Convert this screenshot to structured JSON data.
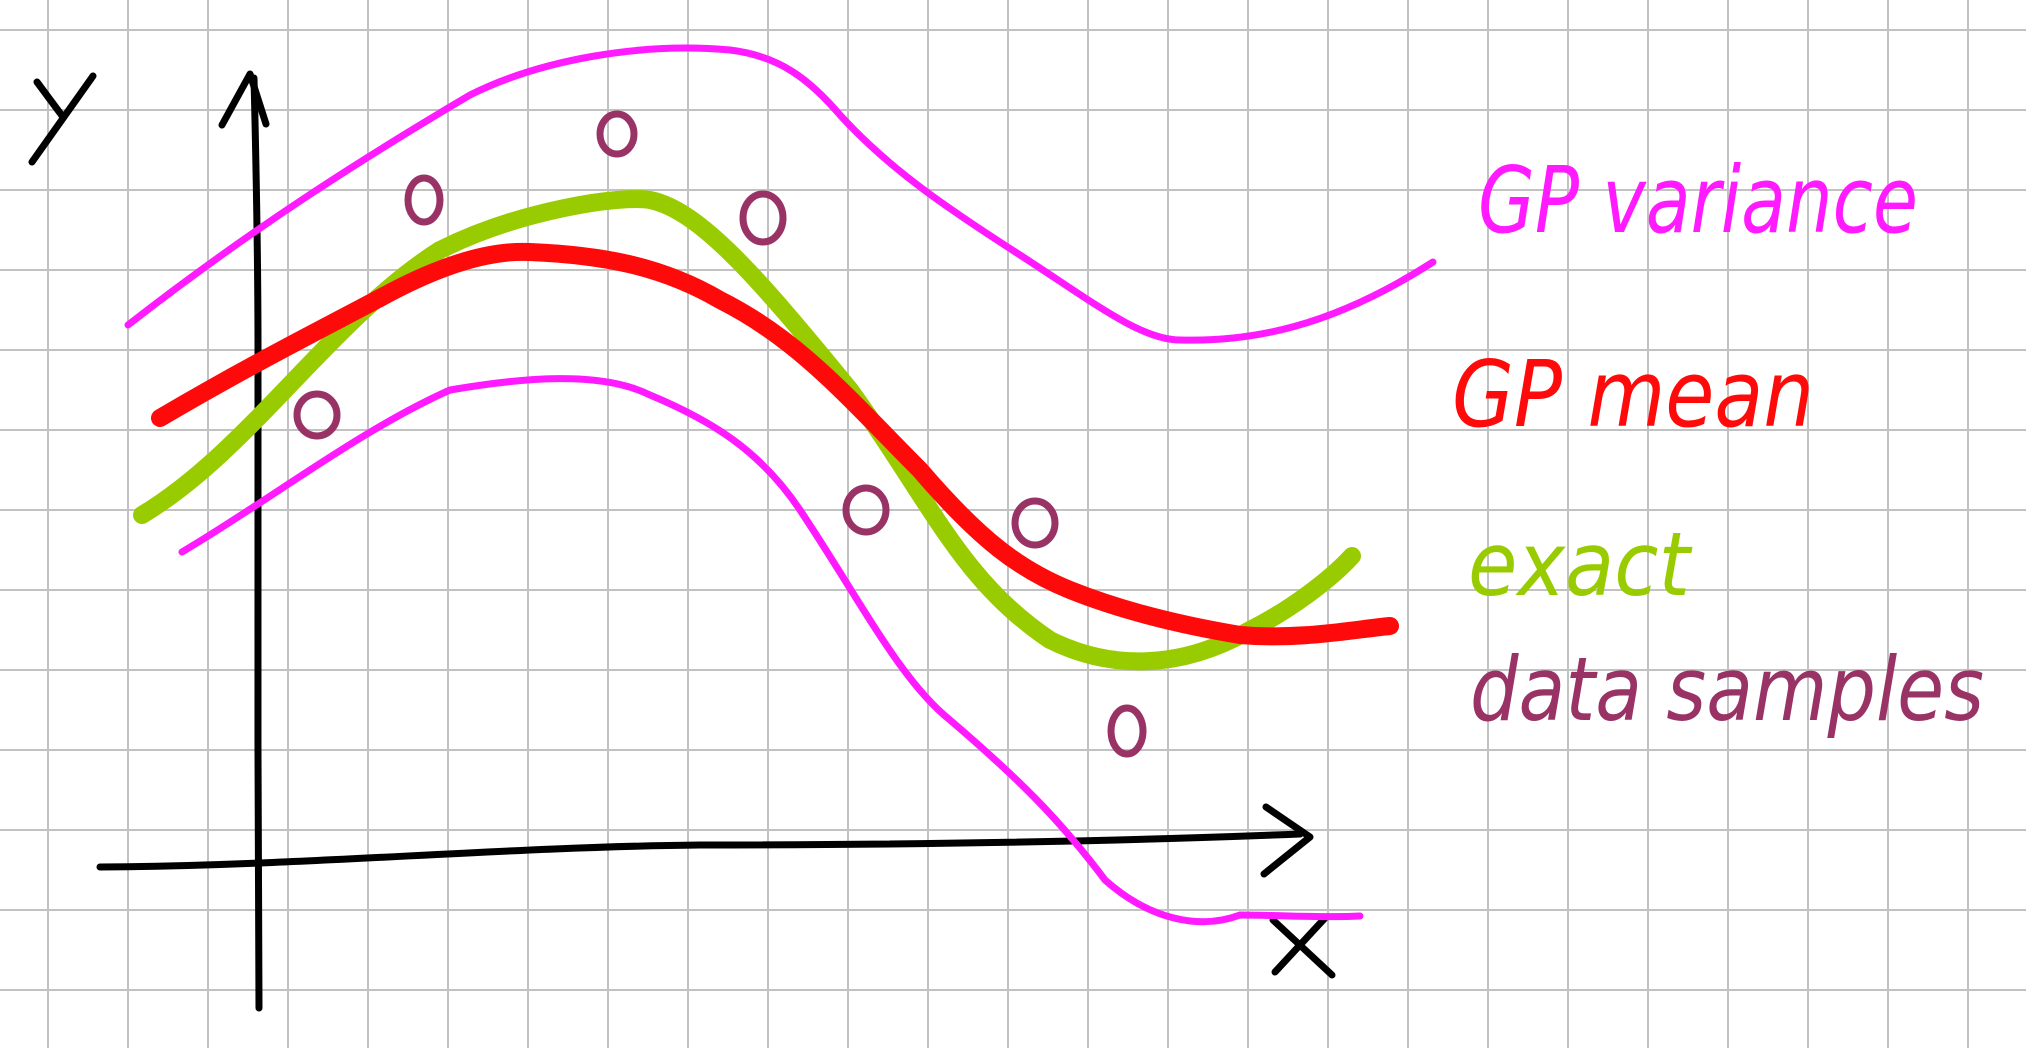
{
  "labels": {
    "x_axis": "x",
    "y_axis": "y",
    "legend_variance": "GP variance",
    "legend_mean": "GP mean",
    "legend_exact": "exact",
    "legend_samples": "data samples"
  },
  "colors": {
    "background": "#ffffff",
    "grid": "#c2c2c2",
    "axes": "#000000",
    "variance": "#ff1aff",
    "mean": "#ff0a0a",
    "exact": "#99cc00",
    "samples": "#993366"
  },
  "icons": {
    "sample_marker": "small-circle",
    "axis_arrowheads": "open-chevron"
  }
}
